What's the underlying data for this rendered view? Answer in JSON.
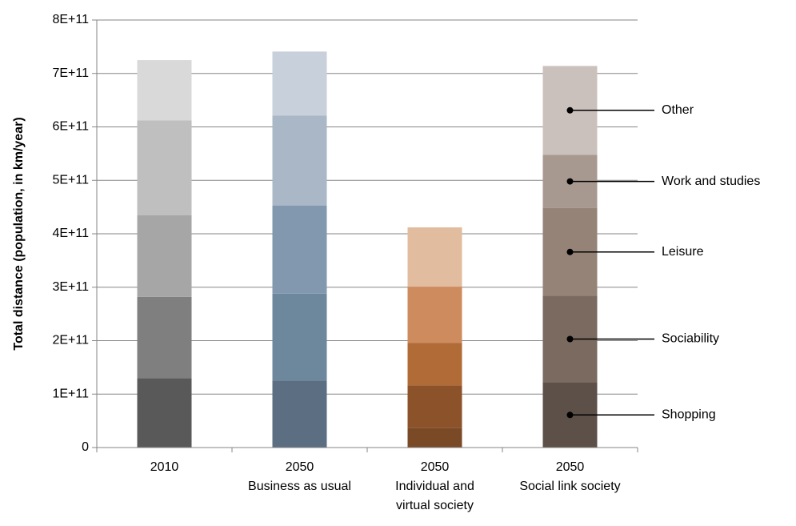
{
  "chart_data": {
    "type": "bar",
    "stacked": true,
    "title": "",
    "xlabel": "",
    "ylabel": "Total distance (population, in km/year)",
    "ylim": [
      0,
      800000000000
    ],
    "yticks": [
      {
        "value": 0,
        "label": "0"
      },
      {
        "value": 100000000000,
        "label": "1E+11"
      },
      {
        "value": 200000000000,
        "label": "2E+11"
      },
      {
        "value": 300000000000,
        "label": "3E+11"
      },
      {
        "value": 400000000000,
        "label": "4E+11"
      },
      {
        "value": 500000000000,
        "label": "5E+11"
      },
      {
        "value": 600000000000,
        "label": "6E+11"
      },
      {
        "value": 700000000000,
        "label": "7E+11"
      },
      {
        "value": 800000000000,
        "label": "8E+11"
      }
    ],
    "grid": true,
    "legend": "right",
    "categories": [
      {
        "lines": [
          "2010"
        ]
      },
      {
        "lines": [
          "2050",
          "Business as usual"
        ]
      },
      {
        "lines": [
          "2050",
          "Individual and",
          "virtual society"
        ]
      },
      {
        "lines": [
          "2050",
          "Social link society"
        ]
      }
    ],
    "series_order": [
      "Shopping",
      "Sociability",
      "Leisure",
      "Work and studies",
      "Other"
    ],
    "legend_labels": [
      "Other",
      "Work and studies",
      "Leisure",
      "Sociability",
      "Shopping"
    ],
    "bars": [
      {
        "segments": [
          130000000000,
          152000000000,
          153000000000,
          177000000000,
          113000000000
        ],
        "colors": [
          "#595959",
          "#7f7f7f",
          "#a6a6a6",
          "#bfbfbf",
          "#d9d9d9"
        ]
      },
      {
        "segments": [
          125000000000,
          163000000000,
          165000000000,
          168000000000,
          120000000000
        ],
        "colors": [
          "#5c6f82",
          "#6d879d",
          "#8298ae",
          "#a9b7c6",
          "#c8d1db"
        ]
      },
      {
        "segments": [
          37000000000,
          79000000000,
          80000000000,
          105000000000,
          111000000000
        ],
        "colors": [
          "#7a4a26",
          "#8c532a",
          "#b06b36",
          "#cd8b5e",
          "#e2bc9e"
        ]
      },
      {
        "segments": [
          122000000000,
          162000000000,
          164000000000,
          100000000000,
          166000000000
        ],
        "colors": [
          "#5d5048",
          "#7a6a5f",
          "#958377",
          "#a89990",
          "#cbc1bc"
        ]
      }
    ]
  }
}
